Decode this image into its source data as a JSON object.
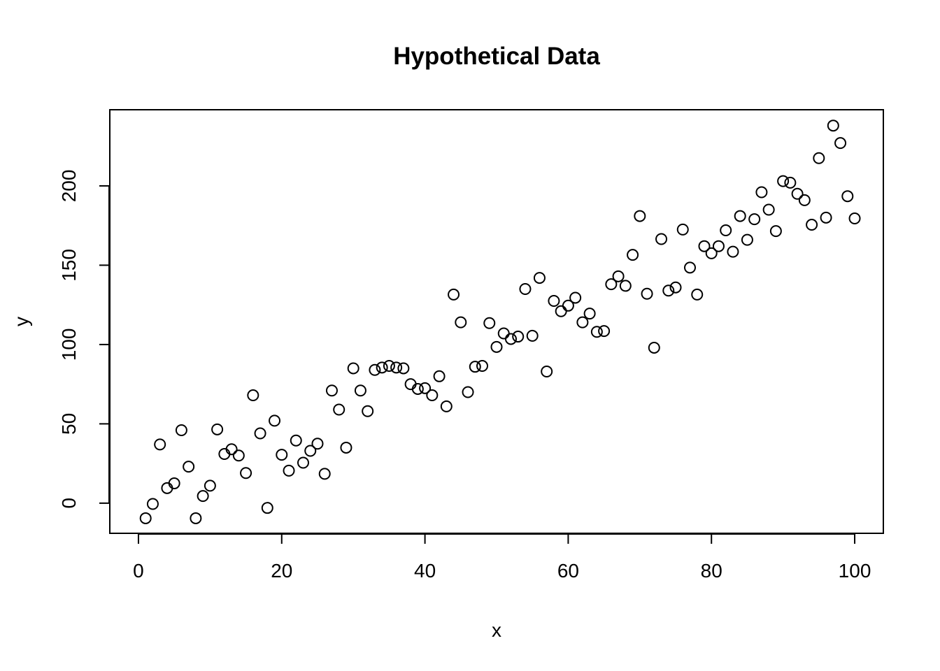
{
  "chart_data": {
    "type": "scatter",
    "title": "Hypothetical Data",
    "xlabel": "x",
    "ylabel": "y",
    "xlim": [
      -4,
      104
    ],
    "ylim": [
      -19,
      248
    ],
    "xticks": [
      0,
      20,
      40,
      60,
      80,
      100
    ],
    "yticks": [
      0,
      50,
      100,
      150,
      200
    ],
    "grid": false,
    "legend": "none",
    "series": [
      {
        "x": [
          1,
          2,
          3,
          4,
          5,
          6,
          7,
          8,
          9,
          10,
          11,
          12,
          13,
          14,
          15,
          16,
          17,
          18,
          19,
          20,
          21,
          22,
          23,
          24,
          25,
          26,
          27,
          28,
          29,
          30,
          31,
          32,
          33,
          34,
          35,
          36,
          37,
          38,
          39,
          40,
          41,
          42,
          43,
          44,
          45,
          46,
          47,
          48,
          49,
          50,
          51,
          52,
          53,
          54,
          55,
          56,
          57,
          58,
          59,
          60,
          61,
          62,
          63,
          64,
          65,
          66,
          67,
          68,
          69,
          70,
          71,
          72,
          73,
          74,
          75,
          76,
          77,
          78,
          79,
          80,
          81,
          82,
          83,
          84,
          85,
          86,
          87,
          88,
          89,
          90,
          91,
          92,
          93,
          94,
          95,
          96,
          97,
          98,
          99,
          100
        ],
        "y": [
          -9.5,
          -0.5,
          37,
          9.5,
          12.5,
          46,
          23,
          -9.5,
          4.5,
          11,
          46.5,
          31,
          34,
          30,
          19,
          68,
          44,
          -3,
          52,
          30.5,
          20.5,
          39.5,
          25.5,
          33,
          37.5,
          18.5,
          71,
          59,
          35,
          85,
          71,
          58,
          84,
          85.5,
          86.5,
          85.5,
          85,
          75,
          72,
          72.5,
          68,
          80,
          61,
          131.5,
          114,
          70,
          86,
          86.5,
          113.5,
          98.5,
          107,
          103.5,
          105,
          135,
          105.5,
          142,
          83,
          127.5,
          121,
          124.5,
          129.5,
          114,
          119.5,
          108,
          108.5,
          138,
          143,
          137,
          156.5,
          181,
          132,
          98,
          166.5,
          134,
          136,
          172.5,
          148.5,
          131.5,
          162,
          157.5,
          162,
          172,
          158.5,
          181,
          166,
          179,
          196,
          185,
          171.5,
          203,
          202,
          195,
          191,
          175.5,
          217.5,
          180,
          238,
          227,
          193.5,
          179.5
        ]
      }
    ]
  }
}
